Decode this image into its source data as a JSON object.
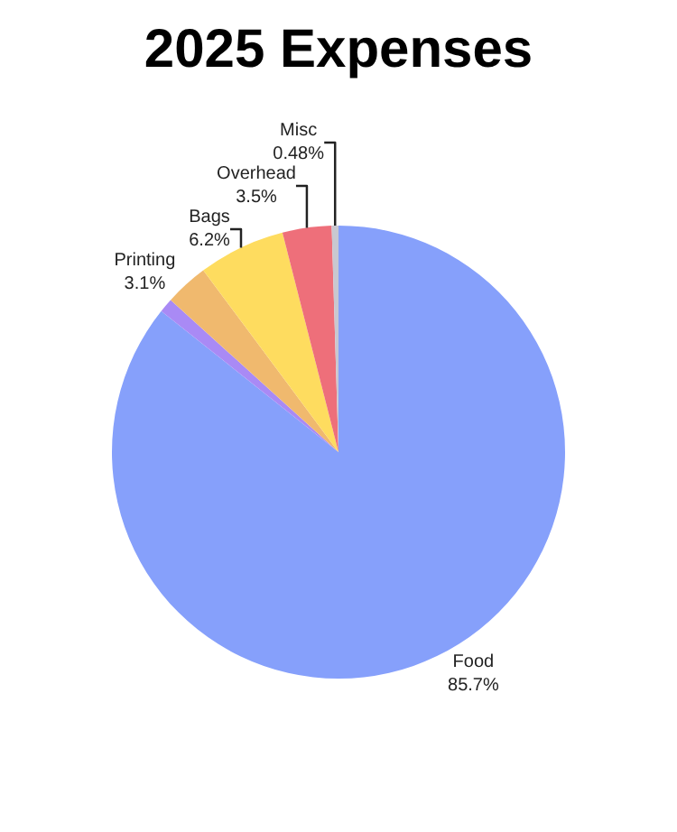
{
  "chart_data": {
    "type": "pie",
    "title": "2025 Expenses",
    "categories": [
      "Food",
      null,
      "Printing",
      "Bags",
      "Overhead",
      "Misc"
    ],
    "values": [
      85.7,
      1.02,
      3.1,
      6.2,
      3.5,
      0.48
    ],
    "value_labels": [
      "85.7%",
      null,
      "3.1%",
      "6.2%",
      "3.5%",
      "0.48%"
    ],
    "colors": [
      "#86a0fb",
      "#a98af5",
      "#f0b96e",
      "#fedc5f",
      "#ee6f7a",
      "#c8c8d0"
    ],
    "legend": false
  }
}
